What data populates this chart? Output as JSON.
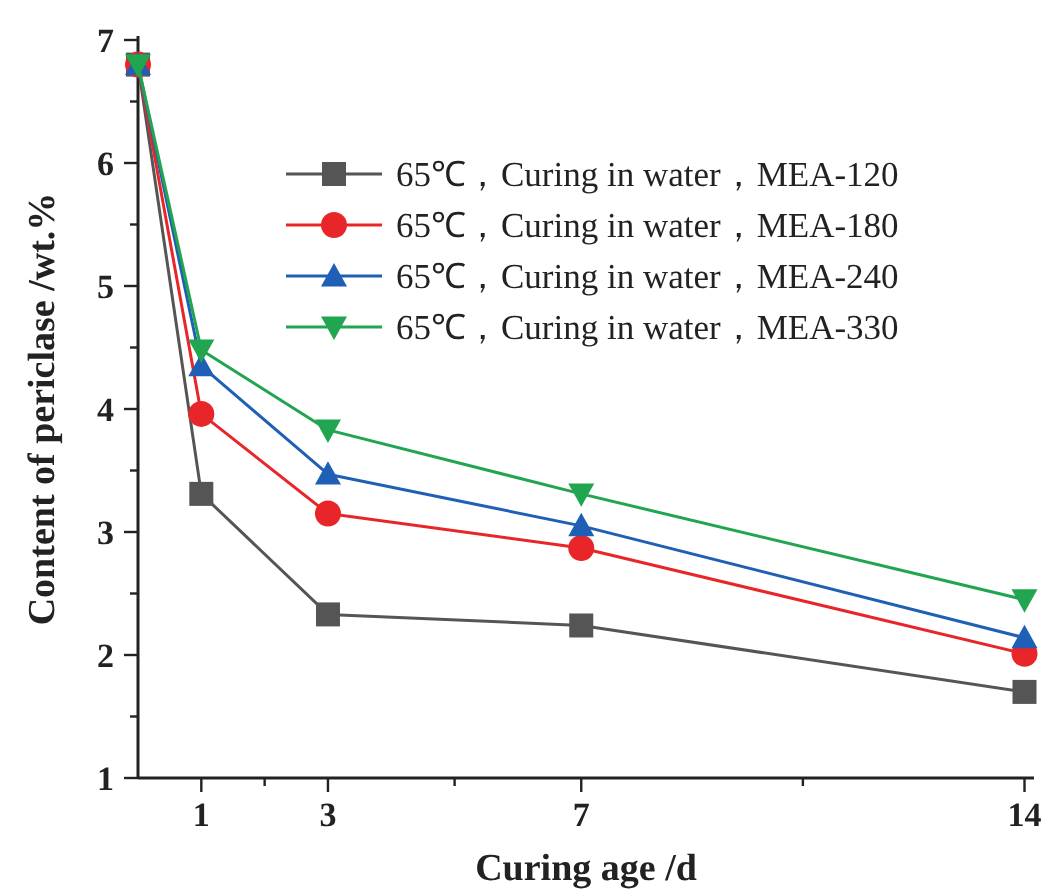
{
  "chart_data": {
    "type": "line",
    "xlabel": "Curing age /d",
    "ylabel": "Content of periclase /wt.%",
    "x": [
      0,
      1,
      3,
      7,
      14
    ],
    "series": [
      {
        "name": "65℃，Curing in water，MEA-120",
        "color": "#555555",
        "marker": "square",
        "values": [
          6.8,
          3.31,
          2.33,
          2.24,
          1.7
        ]
      },
      {
        "name": "65℃，Curing in water，MEA-180",
        "color": "#e8262a",
        "marker": "circle",
        "values": [
          6.8,
          3.96,
          3.15,
          2.87,
          2.01
        ]
      },
      {
        "name": "65℃，Curing in water，MEA-240",
        "color": "#1f5fb5",
        "marker": "triangle",
        "values": [
          6.8,
          4.35,
          3.47,
          3.05,
          2.14
        ]
      },
      {
        "name": "65℃，Curing in water，MEA-330",
        "color": "#22a550",
        "marker": "triangle-down",
        "values": [
          6.8,
          4.48,
          3.83,
          3.31,
          2.45
        ]
      }
    ],
    "xlim": [
      0,
      14.15
    ],
    "ylim": [
      1,
      7
    ],
    "xticks": [
      1,
      {
        "value": 2,
        "label": null
      },
      3,
      {
        "value": 5,
        "label": null
      },
      7,
      {
        "value": 10.5,
        "label": null
      },
      14
    ],
    "yticks": [
      1,
      {
        "value": 1.5,
        "label": null
      },
      2,
      {
        "value": 2.5,
        "label": null
      },
      3,
      {
        "value": 3.5,
        "label": null
      },
      4,
      {
        "value": 4.5,
        "label": null
      },
      5,
      {
        "value": 5.5,
        "label": null
      },
      6,
      {
        "value": 6.5,
        "label": null
      },
      7
    ],
    "grid": false,
    "legend": "top right"
  }
}
